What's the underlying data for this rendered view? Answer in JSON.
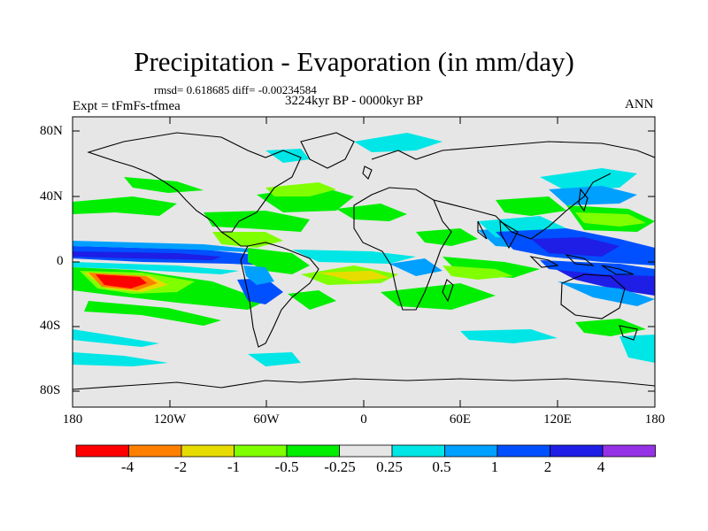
{
  "title": "Precipitation - Evaporation (in mm/day)",
  "stats": "rmsd= 0.618685  diff= -0.00234584",
  "experiment": "Expt = tFmFs-tfmea",
  "period": "3224kyr BP - 0000kyr BP",
  "season": "ANN",
  "y_ticks": [
    "80N",
    "40N",
    "0",
    "40S",
    "80S"
  ],
  "x_ticks": [
    "180",
    "120W",
    "60W",
    "0",
    "60E",
    "120E",
    "180"
  ],
  "colorbar": {
    "labels": [
      "-4",
      "-2",
      "-1",
      "-0.5",
      "-0.25",
      "0.25",
      "0.5",
      "1",
      "2",
      "4"
    ],
    "colors": [
      "#ff0000",
      "#ff8000",
      "#e6dc00",
      "#80ff00",
      "#00ee00",
      "#e6e6e6",
      "#00e6e6",
      "#00a0ff",
      "#0050ff",
      "#1e1ee6",
      "#9632e6"
    ]
  },
  "background_color": "#e6e6e6"
}
